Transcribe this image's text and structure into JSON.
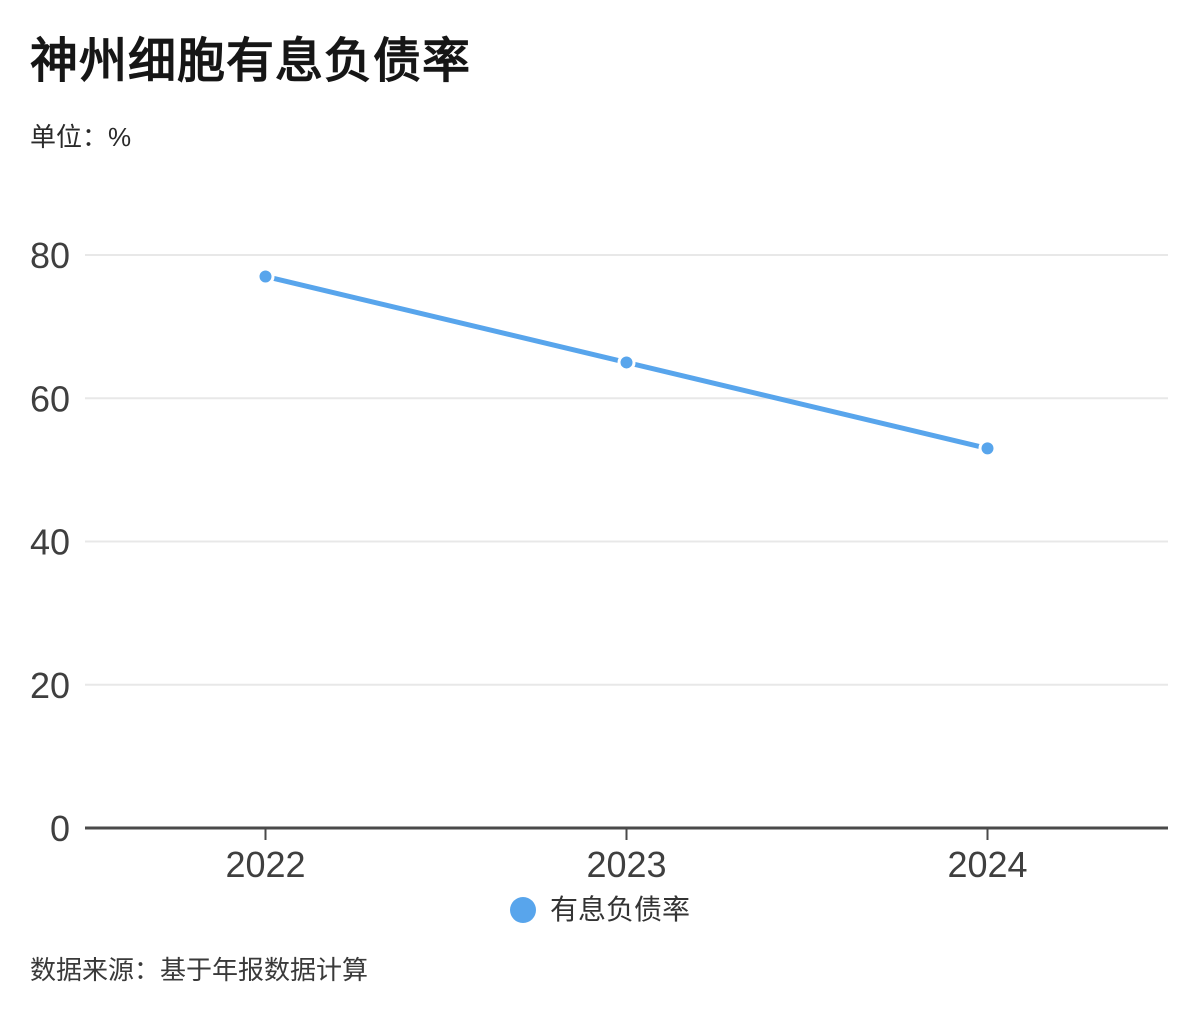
{
  "header": {
    "title": "神州细胞有息负债率",
    "unit_label": "单位：%"
  },
  "chart_data": {
    "type": "line",
    "title": "神州细胞有息负债率",
    "unit": "%",
    "categories": [
      "2022",
      "2023",
      "2024"
    ],
    "series": [
      {
        "name": "有息负债率",
        "values": [
          77,
          65,
          53
        ]
      }
    ],
    "ylim": [
      0,
      80
    ],
    "yticks": [
      0,
      20,
      40,
      60,
      80
    ],
    "grid": "horizontal-only",
    "legend_position": "bottom-center",
    "colors": {
      "line": "#58A5EC",
      "point_fill": "#58A5EC",
      "point_border": "#ffffff",
      "gridline": "#e8e8e8",
      "axis_line": "#4a4a4a",
      "tick_label": "#3f3f3f"
    }
  },
  "legend": {
    "label": "有息负债率",
    "marker_color": "#58A5EC"
  },
  "footer": {
    "source": "数据来源：基于年报数据计算"
  }
}
